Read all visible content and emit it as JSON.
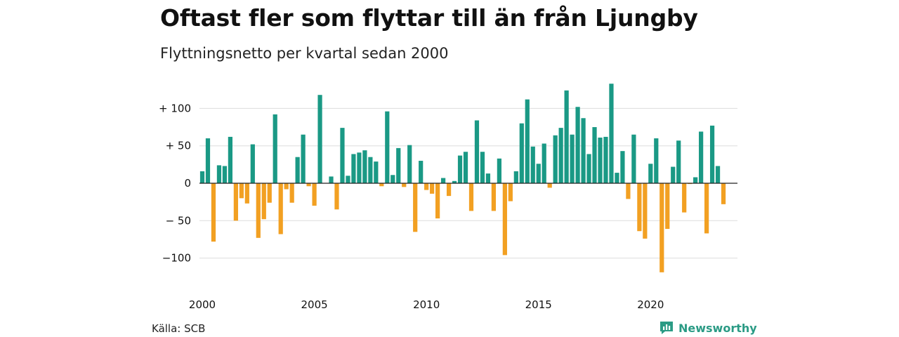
{
  "title": "Oftast fler som flyttar till än från Ljungby",
  "subtitle": "Flyttningsnetto per kvartal sedan 2000",
  "source": "Källa: SCB",
  "brand": "Newsworthy",
  "colors": {
    "positive": "#1a9985",
    "negative": "#f2a022",
    "grid": "#dddddd"
  },
  "chart_data": {
    "type": "bar",
    "title": "Oftast fler som flyttar till än från Ljungby",
    "subtitle": "Flyttningsnetto per kvartal sedan 2000",
    "x_start": 2000,
    "x_step": 0.25,
    "xlim": [
      2000,
      2023.75
    ],
    "x_ticks": [
      2000,
      2005,
      2010,
      2015,
      2020
    ],
    "x_tick_labels": [
      "2000",
      "2005",
      "2010",
      "2015",
      "2020"
    ],
    "ylim": [
      -130,
      140
    ],
    "y_ticks": [
      100,
      50,
      0,
      -50,
      -100
    ],
    "y_tick_labels": [
      "+ 100",
      "+  50",
      "0",
      "− 50",
      "−100"
    ],
    "grid": true,
    "values": [
      16,
      60,
      -78,
      24,
      23,
      62,
      -50,
      -20,
      -27,
      52,
      -73,
      -48,
      -26,
      92,
      -68,
      -8,
      -26,
      35,
      65,
      -4,
      -30,
      118,
      0,
      9,
      -35,
      74,
      10,
      39,
      41,
      44,
      35,
      29,
      -4,
      96,
      11,
      47,
      -5,
      51,
      -65,
      30,
      -9,
      -14,
      -47,
      7,
      -17,
      3,
      37,
      42,
      -37,
      84,
      42,
      13,
      -37,
      33,
      -96,
      -24,
      16,
      80,
      112,
      49,
      26,
      53,
      -6,
      64,
      74,
      124,
      65,
      102,
      87,
      39,
      75,
      61,
      62,
      133,
      14,
      43,
      -21,
      65,
      -64,
      -74,
      26,
      60,
      -119,
      -61,
      22,
      57,
      -39,
      -1,
      8,
      69,
      -67,
      77,
      23,
      -28
    ]
  }
}
